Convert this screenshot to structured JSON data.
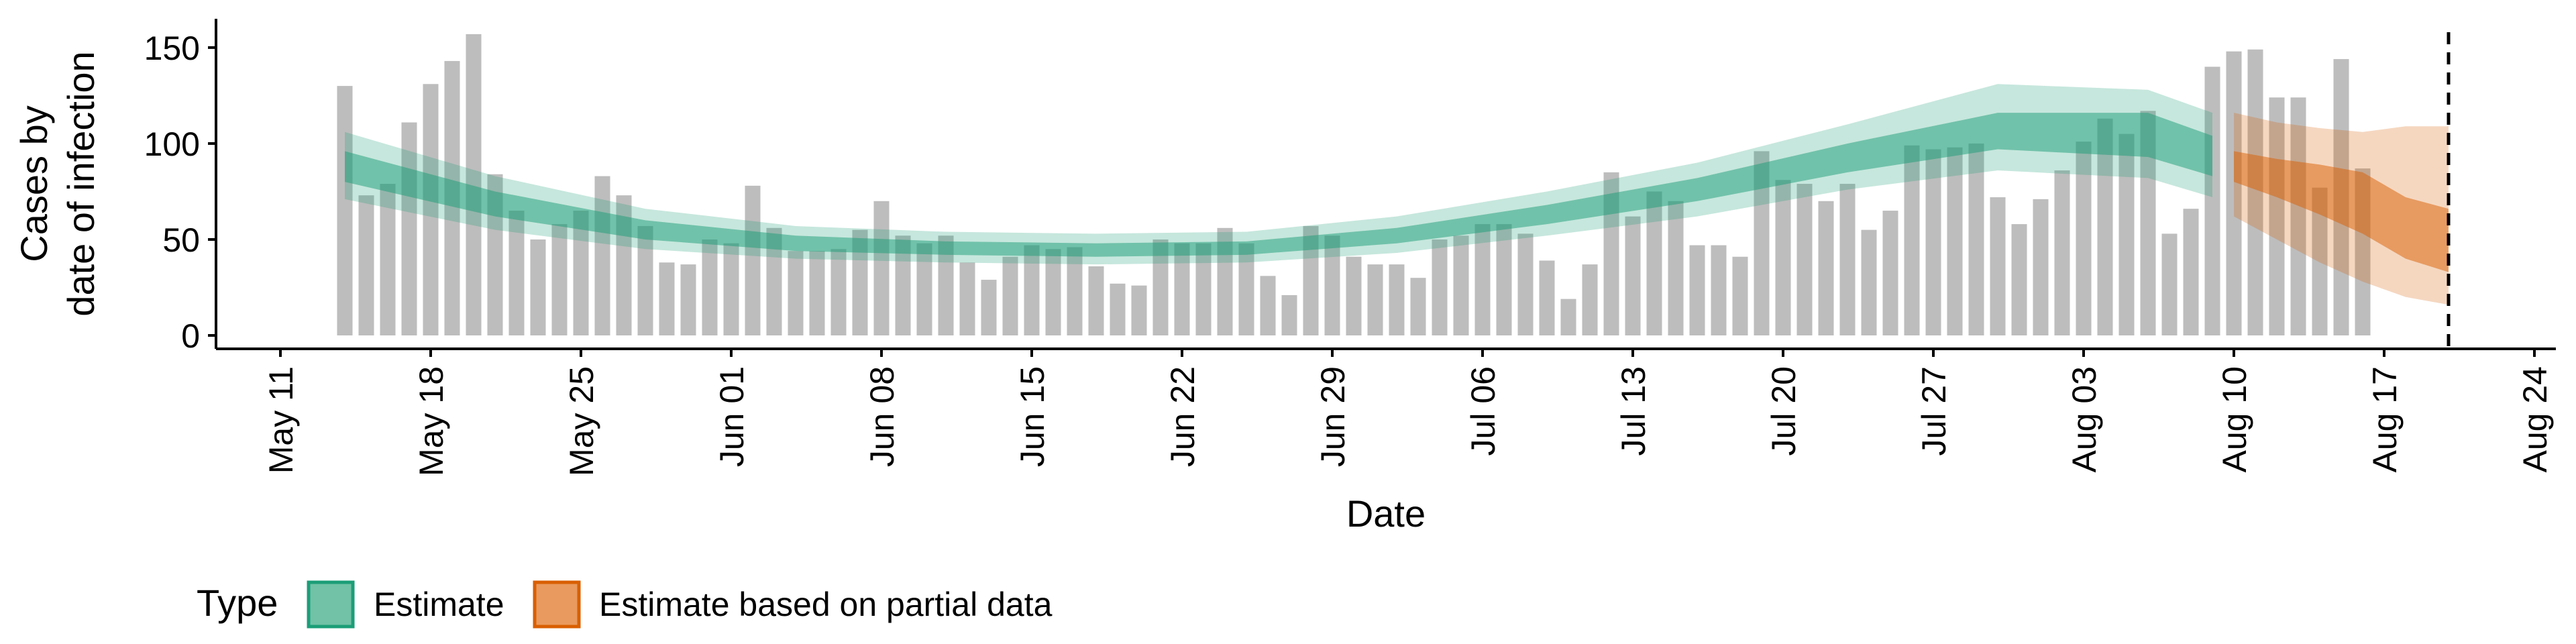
{
  "chart_data": {
    "type": "bar",
    "title": "",
    "xlabel": "Date",
    "ylabel_lines": [
      "Cases by",
      "date of infection"
    ],
    "ylim": [
      0,
      165
    ],
    "yticks": [
      0,
      50,
      100,
      150
    ],
    "start_date": "2020-05-14",
    "x_ticks": [
      {
        "date": "2020-05-11",
        "label": "May 11"
      },
      {
        "date": "2020-05-18",
        "label": "May 18"
      },
      {
        "date": "2020-05-25",
        "label": "May 25"
      },
      {
        "date": "2020-06-01",
        "label": "Jun 01"
      },
      {
        "date": "2020-06-08",
        "label": "Jun 08"
      },
      {
        "date": "2020-06-15",
        "label": "Jun 15"
      },
      {
        "date": "2020-06-22",
        "label": "Jun 22"
      },
      {
        "date": "2020-06-29",
        "label": "Jun 29"
      },
      {
        "date": "2020-07-06",
        "label": "Jul 06"
      },
      {
        "date": "2020-07-13",
        "label": "Jul 13"
      },
      {
        "date": "2020-07-20",
        "label": "Jul 20"
      },
      {
        "date": "2020-07-27",
        "label": "Jul 27"
      },
      {
        "date": "2020-08-03",
        "label": "Aug 03"
      },
      {
        "date": "2020-08-10",
        "label": "Aug 10"
      },
      {
        "date": "2020-08-17",
        "label": "Aug 17"
      },
      {
        "date": "2020-08-24",
        "label": "Aug 24"
      }
    ],
    "observed_cases": [
      130,
      73,
      79,
      111,
      131,
      143,
      157,
      84,
      65,
      50,
      58,
      65,
      83,
      73,
      57,
      38,
      37,
      50,
      48,
      78,
      56,
      44,
      44,
      45,
      55,
      70,
      52,
      48,
      52,
      38,
      29,
      41,
      47,
      45,
      46,
      36,
      27,
      26,
      50,
      48,
      48,
      56,
      48,
      31,
      21,
      57,
      52,
      41,
      37,
      37,
      30,
      50,
      52,
      58,
      58,
      53,
      39,
      19,
      37,
      85,
      62,
      75,
      70,
      47,
      47,
      41,
      96,
      81,
      79,
      70,
      79,
      55,
      65,
      99,
      97,
      98,
      100,
      72,
      58,
      71,
      86,
      101,
      113,
      105,
      117,
      53,
      66,
      140,
      148,
      149,
      124,
      124,
      77,
      144,
      87
    ],
    "series": [
      {
        "name": "Estimate",
        "color": "#1b9e77",
        "x": [
          "2020-05-14",
          "2020-05-21",
          "2020-05-28",
          "2020-06-04",
          "2020-06-11",
          "2020-06-18",
          "2020-06-25",
          "2020-07-02",
          "2020-07-09",
          "2020-07-16",
          "2020-07-23",
          "2020-07-30",
          "2020-08-06",
          "2020-08-09"
        ],
        "median": [
          88,
          68,
          55,
          48,
          45,
          44,
          45,
          52,
          63,
          76,
          93,
          107,
          105,
          93
        ],
        "lower50": [
          80,
          62,
          50,
          44,
          42,
          41,
          42,
          48,
          58,
          70,
          85,
          97,
          93,
          83
        ],
        "upper50": [
          96,
          75,
          60,
          52,
          49,
          48,
          49,
          56,
          68,
          82,
          100,
          116,
          116,
          104
        ],
        "lower90": [
          71,
          55,
          45,
          40,
          38,
          37,
          38,
          43,
          52,
          62,
          76,
          86,
          82,
          72
        ],
        "upper90": [
          106,
          83,
          66,
          57,
          54,
          53,
          54,
          62,
          75,
          90,
          110,
          131,
          128,
          116
        ]
      },
      {
        "name": "Estimate based on partial data",
        "color": "#d95f02",
        "x": [
          "2020-08-10",
          "2020-08-12",
          "2020-08-14",
          "2020-08-16",
          "2020-08-18",
          "2020-08-20"
        ],
        "median": [
          88,
          82,
          76,
          70,
          55,
          48
        ],
        "lower50": [
          80,
          72,
          63,
          53,
          40,
          33
        ],
        "upper50": [
          96,
          92,
          89,
          85,
          72,
          66
        ],
        "lower90": [
          62,
          50,
          38,
          28,
          20,
          16
        ],
        "upper90": [
          116,
          111,
          108,
          106,
          109,
          109
        ]
      }
    ],
    "vline_date": "2020-08-20",
    "bar_color": "#bdbdbd",
    "grid": false,
    "legend": {
      "title": "Type",
      "position": "bottom-left",
      "items": [
        {
          "label": "Estimate",
          "color": "#1b9e77",
          "fill": "#71c2a6"
        },
        {
          "label": "Estimate based on partial data",
          "color": "#d95f02",
          "fill": "#e99a5e"
        }
      ]
    }
  }
}
